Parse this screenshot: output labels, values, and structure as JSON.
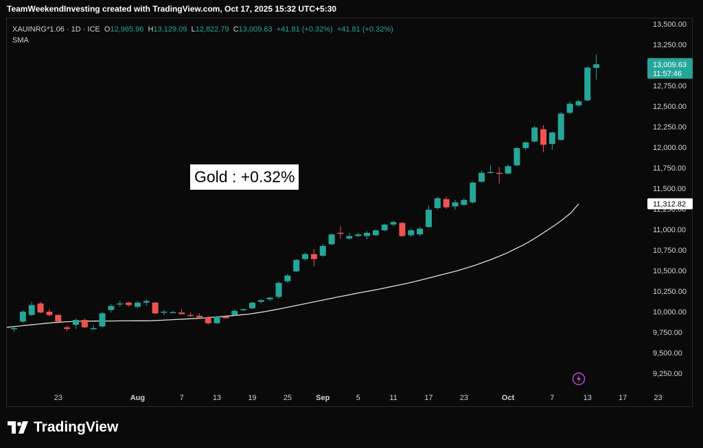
{
  "header": {
    "credit": "TeamWeekendInvesting created with TradingView.com, Oct 17, 2025 15:32 UTC+5:30"
  },
  "legend": {
    "symbol": "XAUINRG*1.06 · 1D · ICE",
    "o_label": "O",
    "o_value": "12,965.96",
    "h_label": "H",
    "h_value": "13,129.09",
    "l_label": "L",
    "l_value": "12,822.79",
    "c_label": "C",
    "c_value": "13,009.63",
    "change": "+41.81 (+0.32%)",
    "change2": "+41.81 (+0.32%)",
    "sma": "SMA"
  },
  "annotation": {
    "text": "Gold : +0.32%"
  },
  "price_tag": {
    "price": "13,009.63",
    "countdown": "11:57:46"
  },
  "sma_tag": {
    "value": "11,312.82"
  },
  "brand": {
    "name": "TradingView",
    "logo_icon": "tradingview-logo-icon"
  },
  "colors": {
    "up": "#26a69a",
    "down": "#ef5350",
    "sma": "#e0e0e0",
    "tag": "#26a69a",
    "background": "#0a0a0a"
  },
  "chart_data": {
    "type": "candlestick",
    "title": "",
    "ylim": [
      9100,
      13600
    ],
    "y_ticks": [
      "13,500.00",
      "13,250.00",
      "13,000.00",
      "12,750.00",
      "12,500.00",
      "12,250.00",
      "12,000.00",
      "11,750.00",
      "11,500.00",
      "11,250.00",
      "11,000.00",
      "10,750.00",
      "10,500.00",
      "10,250.00",
      "10,000.00",
      "9,750.00",
      "9,500.00",
      "9,250.00"
    ],
    "x_ticks": [
      "23",
      "Aug",
      "7",
      "13",
      "19",
      "25",
      "Sep",
      "5",
      "11",
      "17",
      "23",
      "Oct",
      "7",
      "13",
      "17",
      "23"
    ],
    "x_tick_index": [
      5,
      14,
      19,
      23,
      27,
      31,
      35,
      39,
      43,
      47,
      51,
      56,
      61,
      65,
      69,
      73
    ],
    "x_tick_bold": [
      "Aug",
      "Sep",
      "Oct"
    ],
    "grid": false,
    "candles": [
      {
        "o": 9790,
        "h": 9810,
        "l": 9750,
        "c": 9800
      },
      {
        "o": 9880,
        "h": 10020,
        "l": 9860,
        "c": 10000
      },
      {
        "o": 9960,
        "h": 10120,
        "l": 9950,
        "c": 10080
      },
      {
        "o": 10100,
        "h": 10120,
        "l": 9980,
        "c": 9990
      },
      {
        "o": 10000,
        "h": 10030,
        "l": 9940,
        "c": 9960
      },
      {
        "o": 9960,
        "h": 9970,
        "l": 9880,
        "c": 9880
      },
      {
        "o": 9810,
        "h": 9830,
        "l": 9760,
        "c": 9790
      },
      {
        "o": 9840,
        "h": 9920,
        "l": 9790,
        "c": 9900
      },
      {
        "o": 9900,
        "h": 9920,
        "l": 9800,
        "c": 9810
      },
      {
        "o": 9790,
        "h": 9840,
        "l": 9780,
        "c": 9800
      },
      {
        "o": 9820,
        "h": 10000,
        "l": 9810,
        "c": 9980
      },
      {
        "o": 10020,
        "h": 10090,
        "l": 9990,
        "c": 10070
      },
      {
        "o": 10090,
        "h": 10130,
        "l": 10060,
        "c": 10100
      },
      {
        "o": 10110,
        "h": 10120,
        "l": 10060,
        "c": 10080
      },
      {
        "o": 10060,
        "h": 10130,
        "l": 10040,
        "c": 10110
      },
      {
        "o": 10110,
        "h": 10150,
        "l": 10070,
        "c": 10130
      },
      {
        "o": 10110,
        "h": 10120,
        "l": 9970,
        "c": 9980
      },
      {
        "o": 9990,
        "h": 10020,
        "l": 9960,
        "c": 10000
      },
      {
        "o": 9990,
        "h": 10010,
        "l": 9990,
        "c": 9995
      },
      {
        "o": 9990,
        "h": 10030,
        "l": 9990,
        "c": 9970
      },
      {
        "o": 9960,
        "h": 9990,
        "l": 9940,
        "c": 9950
      },
      {
        "o": 9950,
        "h": 9980,
        "l": 9920,
        "c": 9930
      },
      {
        "o": 9930,
        "h": 9950,
        "l": 9840,
        "c": 9860
      },
      {
        "o": 9860,
        "h": 9950,
        "l": 9850,
        "c": 9940
      },
      {
        "o": 9940,
        "h": 9960,
        "l": 9920,
        "c": 9920
      },
      {
        "o": 9960,
        "h": 10030,
        "l": 9950,
        "c": 10010
      },
      {
        "o": 10020,
        "h": 10040,
        "l": 10010,
        "c": 10030
      },
      {
        "o": 10040,
        "h": 10120,
        "l": 10030,
        "c": 10110
      },
      {
        "o": 10120,
        "h": 10150,
        "l": 10100,
        "c": 10140
      },
      {
        "o": 10150,
        "h": 10180,
        "l": 10130,
        "c": 10170
      },
      {
        "o": 10180,
        "h": 10370,
        "l": 10160,
        "c": 10350
      },
      {
        "o": 10370,
        "h": 10460,
        "l": 10350,
        "c": 10440
      },
      {
        "o": 10490,
        "h": 10640,
        "l": 10480,
        "c": 10630
      },
      {
        "o": 10640,
        "h": 10720,
        "l": 10620,
        "c": 10700
      },
      {
        "o": 10700,
        "h": 10760,
        "l": 10550,
        "c": 10640
      },
      {
        "o": 10680,
        "h": 10820,
        "l": 10670,
        "c": 10800
      },
      {
        "o": 10820,
        "h": 10950,
        "l": 10810,
        "c": 10940
      },
      {
        "o": 10960,
        "h": 11040,
        "l": 10890,
        "c": 10950
      },
      {
        "o": 10890,
        "h": 10960,
        "l": 10880,
        "c": 10920
      },
      {
        "o": 10920,
        "h": 10960,
        "l": 10910,
        "c": 10940
      },
      {
        "o": 10920,
        "h": 10980,
        "l": 10880,
        "c": 10960
      },
      {
        "o": 10930,
        "h": 11000,
        "l": 10920,
        "c": 10990
      },
      {
        "o": 10990,
        "h": 11070,
        "l": 10980,
        "c": 11060
      },
      {
        "o": 11060,
        "h": 11110,
        "l": 11040,
        "c": 11090
      },
      {
        "o": 11080,
        "h": 11090,
        "l": 10910,
        "c": 10920
      },
      {
        "o": 10930,
        "h": 11010,
        "l": 10910,
        "c": 10990
      },
      {
        "o": 10940,
        "h": 11030,
        "l": 10920,
        "c": 11010
      },
      {
        "o": 11030,
        "h": 11290,
        "l": 11020,
        "c": 11240
      },
      {
        "o": 11260,
        "h": 11400,
        "l": 11240,
        "c": 11380
      },
      {
        "o": 11370,
        "h": 11400,
        "l": 11250,
        "c": 11270
      },
      {
        "o": 11280,
        "h": 11360,
        "l": 11240,
        "c": 11330
      },
      {
        "o": 11300,
        "h": 11380,
        "l": 11290,
        "c": 11360
      },
      {
        "o": 11330,
        "h": 11580,
        "l": 11320,
        "c": 11570
      },
      {
        "o": 11580,
        "h": 11720,
        "l": 11570,
        "c": 11690
      },
      {
        "o": 11690,
        "h": 11780,
        "l": 11680,
        "c": 11700
      },
      {
        "o": 11690,
        "h": 11760,
        "l": 11560,
        "c": 11680
      },
      {
        "o": 11680,
        "h": 11790,
        "l": 11670,
        "c": 11770
      },
      {
        "o": 11780,
        "h": 12000,
        "l": 11770,
        "c": 11990
      },
      {
        "o": 11990,
        "h": 12070,
        "l": 11960,
        "c": 12060
      },
      {
        "o": 12070,
        "h": 12260,
        "l": 12060,
        "c": 12240
      },
      {
        "o": 12220,
        "h": 12270,
        "l": 11940,
        "c": 12030
      },
      {
        "o": 12040,
        "h": 12190,
        "l": 11970,
        "c": 12180
      },
      {
        "o": 12090,
        "h": 12430,
        "l": 12080,
        "c": 12410
      },
      {
        "o": 12420,
        "h": 12560,
        "l": 12400,
        "c": 12530
      },
      {
        "o": 12510,
        "h": 12580,
        "l": 12490,
        "c": 12560
      },
      {
        "o": 12570,
        "h": 12980,
        "l": 12560,
        "c": 12970
      },
      {
        "o": 12966,
        "h": 13129,
        "l": 12823,
        "c": 13010
      }
    ],
    "sma_points": [
      9810,
      9820,
      9830,
      9840,
      9850,
      9860,
      9868,
      9875,
      9880,
      9883,
      9885,
      9886,
      9887,
      9887,
      9888,
      9888,
      9889,
      9889,
      9890,
      9895,
      9900,
      9905,
      9910,
      9915,
      9920,
      9928,
      9935,
      9943,
      9952,
      9961,
      9970,
      9985,
      10000,
      10018,
      10037,
      10057,
      10077,
      10097,
      10117,
      10137,
      10157,
      10177,
      10196,
      10215,
      10234,
      10252,
      10270,
      10290,
      10310,
      10330,
      10352,
      10375,
      10400,
      10425,
      10450,
      10475,
      10500,
      10530,
      10560,
      10595,
      10630,
      10670,
      10710,
      10758,
      10806,
      10860,
      10920,
      10985,
      11050,
      11120,
      11200,
      11312.82
    ]
  }
}
